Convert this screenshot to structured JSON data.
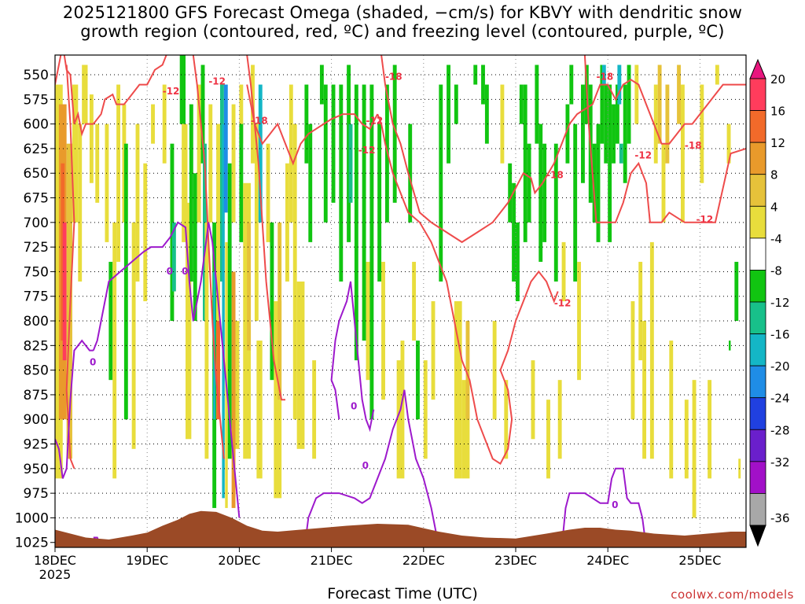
{
  "chart_data": {
    "type": "heatmap",
    "title_lines": [
      "2025121800 GFS Forecast Omega (shaded, −cm/s) for KBVY with dendritic snow",
      "growth region (contoured, red, ºC) and freezing level (contoured, purple, ºC)"
    ],
    "xlabel": "Forecast Time (UTC)",
    "credit": "coolwx.com/models",
    "x_ticks": [
      "18DEC",
      "19DEC",
      "20DEC",
      "21DEC",
      "22DEC",
      "23DEC",
      "24DEC",
      "25DEC"
    ],
    "x_year": "2025",
    "x_range_hours": [
      0,
      180
    ],
    "y_ticks": [
      "550",
      "575",
      "600",
      "625",
      "650",
      "675",
      "700",
      "725",
      "750",
      "775",
      "800",
      "825",
      "850",
      "875",
      "900",
      "925",
      "950",
      "975",
      "1000",
      "1025"
    ],
    "y_range_hpa": [
      530,
      1030
    ],
    "colorbar_labels": [
      "20",
      "16",
      "12",
      "8",
      "4",
      "-4",
      "-8",
      "-12",
      "-16",
      "-20",
      "-24",
      "-28",
      "-32",
      "-36"
    ],
    "colorbar_colors": [
      "#ff3c5c",
      "#f26a2a",
      "#e99a2b",
      "#e6c23a",
      "#e8dd3c",
      "#ffffff",
      "#11c511",
      "#18c08a",
      "#14b6c6",
      "#1f8de6",
      "#2040e0",
      "#6a1fcc",
      "#a210c8",
      "#a8a8a8"
    ],
    "contour_labels": {
      "dendritic_red": [
        "-12",
        "-12",
        "-18",
        "-12",
        "-18",
        "-12",
        "-18",
        "-18",
        "-12",
        "-18",
        "-12",
        "-12"
      ],
      "freezing_purple": [
        "0",
        "0",
        "0",
        "0",
        "0",
        "0"
      ]
    },
    "colors": {
      "terrain": "#9b4a26",
      "dendritic": "#ee4b4b",
      "freezing": "#9d19cc",
      "credit": "#cc3333"
    }
  }
}
